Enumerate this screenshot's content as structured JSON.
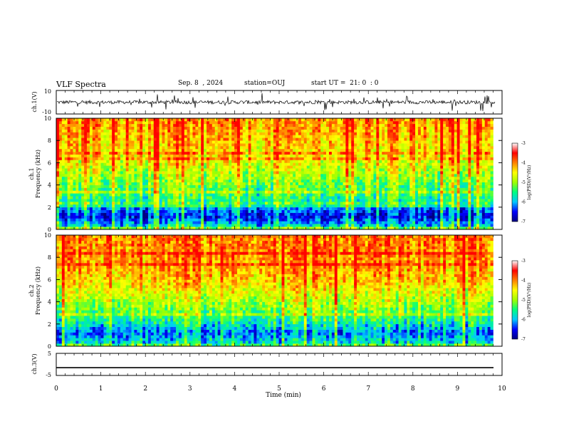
{
  "header": {
    "title": "VLF Spectra",
    "date": "Sep. 8  , 2024",
    "station": "station=OUJ",
    "start": "start UT =  21: 0  : 0"
  },
  "colors": {
    "colormap": [
      "#000080",
      "#0000ff",
      "#00c8ff",
      "#00ff80",
      "#a0ff00",
      "#ffff00",
      "#ff8000",
      "#ff0000",
      "#ffffff"
    ],
    "waveform": "#000000",
    "axes": "#000000"
  },
  "chart_data": [
    {
      "type": "line",
      "ylabel": "ch.1(V)",
      "ylim": [
        -10,
        10
      ],
      "yticks": [
        "10",
        "-10"
      ],
      "xlim": [
        0,
        10
      ],
      "description_level": 0,
      "noise_amplitude": 3
    },
    {
      "type": "heatmap",
      "ylabel": "ch.1\nFrequency (kHz)",
      "ylabel_line1": "ch.1",
      "ylabel_line2": "Frequency (kHz)",
      "ylim": [
        0,
        10
      ],
      "yticks": [
        "0",
        "2",
        "4",
        "6",
        "8",
        "10"
      ],
      "xlim": [
        0,
        10
      ],
      "data_end_min": 9.8,
      "colorbar": {
        "label": "log(PSD)(V²/Hz)",
        "range": [
          -7,
          -3
        ],
        "ticks": [
          "-3",
          "-4",
          "-5",
          "-6",
          "-7"
        ]
      },
      "band_profile_kHz": [
        [
          0.0,
          -4.5
        ],
        [
          0.4,
          -5.8
        ],
        [
          1.2,
          -6.6
        ],
        [
          2.0,
          -6.0
        ],
        [
          2.6,
          -5.4
        ],
        [
          3.2,
          -5.2
        ],
        [
          4.5,
          -4.8
        ],
        [
          6.0,
          -4.3
        ],
        [
          8.0,
          -3.9
        ],
        [
          10.0,
          -3.7
        ]
      ]
    },
    {
      "type": "heatmap",
      "ylabel": "ch.2\nFrequency (kHz)",
      "ylabel_line1": "ch.2",
      "ylabel_line2": "Frequency (kHz)",
      "ylim": [
        0,
        10
      ],
      "yticks": [
        "0",
        "2",
        "4",
        "6",
        "8",
        "10"
      ],
      "xlim": [
        0,
        10
      ],
      "data_end_min": 9.8,
      "colorbar": {
        "label": "log(PSD)(V²/Hz)",
        "range": [
          -7,
          -3
        ],
        "ticks": [
          "-3",
          "-4",
          "-5",
          "-6",
          "-7"
        ]
      },
      "band_profile_kHz": [
        [
          0.0,
          -4.8
        ],
        [
          0.4,
          -5.6
        ],
        [
          1.2,
          -6.1
        ],
        [
          2.0,
          -5.5
        ],
        [
          2.6,
          -5.2
        ],
        [
          3.2,
          -4.9
        ],
        [
          4.5,
          -4.4
        ],
        [
          6.0,
          -3.9
        ],
        [
          8.0,
          -3.6
        ],
        [
          10.0,
          -3.5
        ]
      ]
    },
    {
      "type": "line",
      "ylabel": "ch.3(V)",
      "ylim": [
        -5,
        5
      ],
      "yticks": [
        "5",
        "-5"
      ],
      "xlim": [
        0,
        10
      ],
      "constant_value": -1.5
    }
  ],
  "xaxis": {
    "label": "Time (min)",
    "ticks": [
      "0",
      "1",
      "2",
      "3",
      "4",
      "5",
      "6",
      "7",
      "8",
      "9",
      "10"
    ]
  }
}
